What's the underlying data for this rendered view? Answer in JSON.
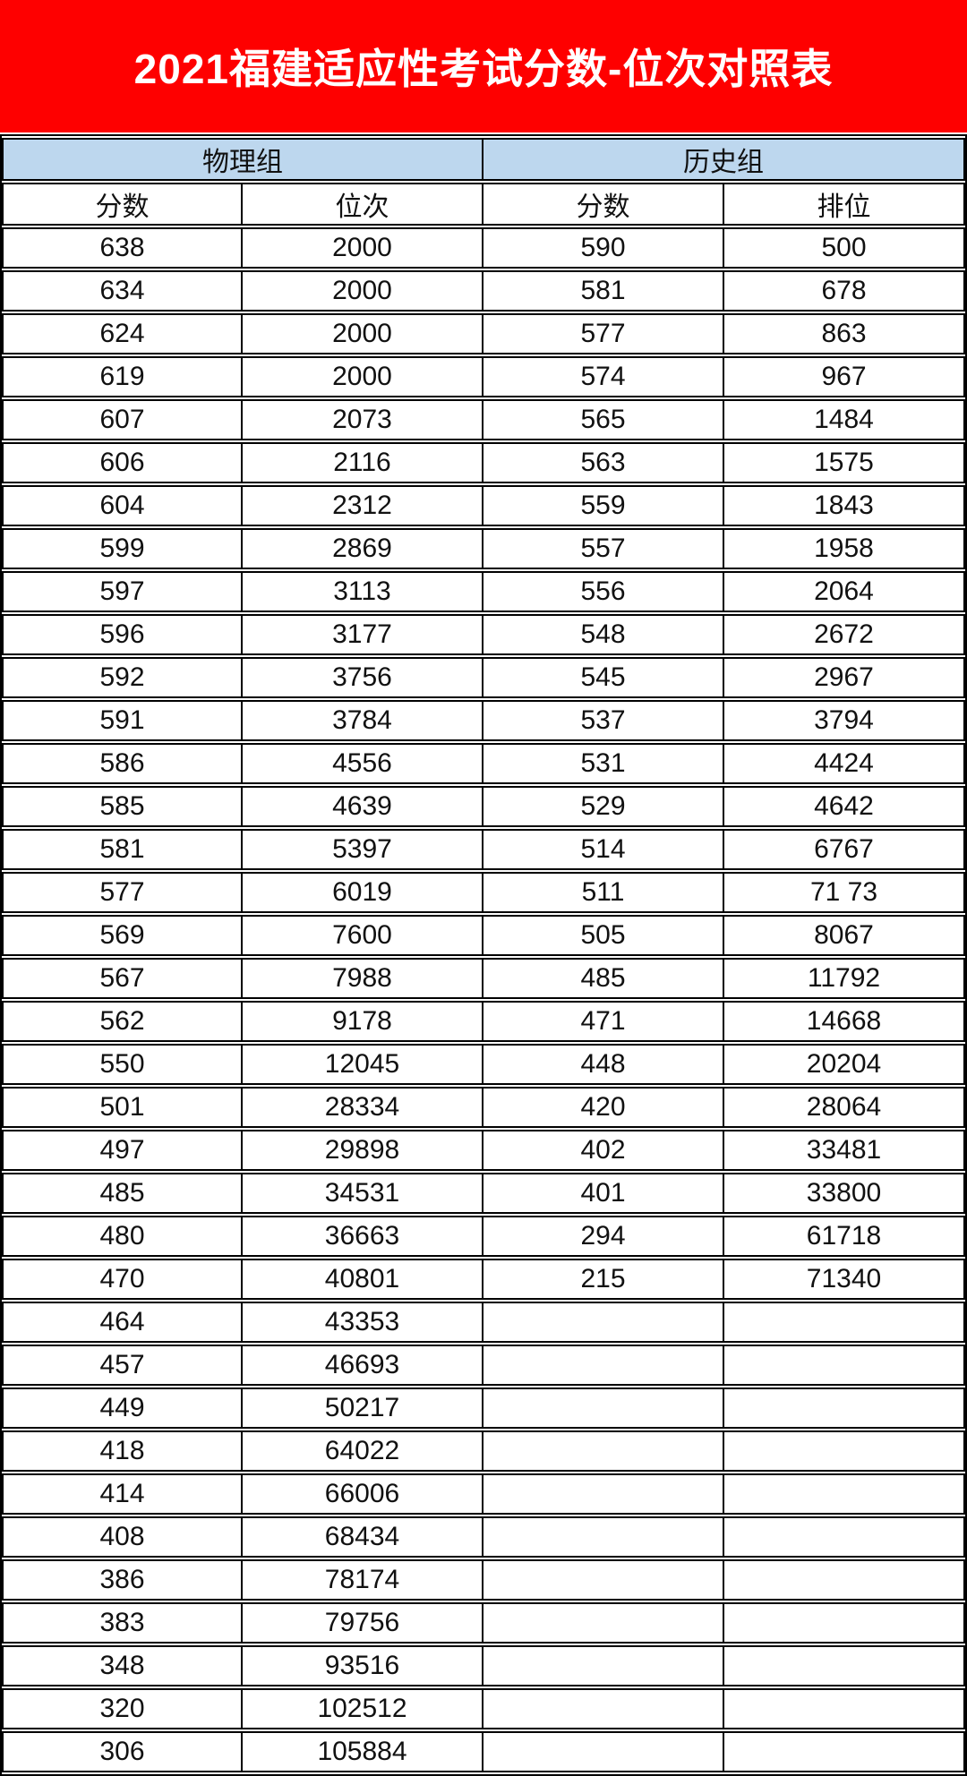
{
  "page": {
    "title": "2021福建适应性考试分数-位次对照表"
  },
  "colors": {
    "banner_bg": "#FE0000",
    "banner_text": "#FFFFFF",
    "group_header_bg": "#BDD7EE",
    "border": "#000000",
    "cell_bg": "#FFFFFF",
    "text": "#111111"
  },
  "chart_data": {
    "type": "table",
    "title": "2021福建适应性考试分数-位次对照表",
    "column_groups": [
      {
        "label": "物理组",
        "span": 2
      },
      {
        "label": "历史组",
        "span": 2
      }
    ],
    "columns": [
      "分数",
      "位次",
      "分数",
      "排位"
    ],
    "rows": [
      [
        "638",
        "2000",
        "590",
        "500"
      ],
      [
        "634",
        "2000",
        "581",
        "678"
      ],
      [
        "624",
        "2000",
        "577",
        "863"
      ],
      [
        "619",
        "2000",
        "574",
        "967"
      ],
      [
        "607",
        "2073",
        "565",
        "1484"
      ],
      [
        "606",
        "2116",
        "563",
        "1575"
      ],
      [
        "604",
        "2312",
        "559",
        "1843"
      ],
      [
        "599",
        "2869",
        "557",
        "1958"
      ],
      [
        "597",
        "3113",
        "556",
        "2064"
      ],
      [
        "596",
        "3177",
        "548",
        "2672"
      ],
      [
        "592",
        "3756",
        "545",
        "2967"
      ],
      [
        "591",
        "3784",
        "537",
        "3794"
      ],
      [
        "586",
        "4556",
        "531",
        "4424"
      ],
      [
        "585",
        "4639",
        "529",
        "4642"
      ],
      [
        "581",
        "5397",
        "514",
        "6767"
      ],
      [
        "577",
        "6019",
        "511",
        "71 73"
      ],
      [
        "569",
        "7600",
        "505",
        "8067"
      ],
      [
        "567",
        "7988",
        "485",
        "11792"
      ],
      [
        "562",
        "9178",
        "471",
        "14668"
      ],
      [
        "550",
        "12045",
        "448",
        "20204"
      ],
      [
        "501",
        "28334",
        "420",
        "28064"
      ],
      [
        "497",
        "29898",
        "402",
        "33481"
      ],
      [
        "485",
        "34531",
        "401",
        "33800"
      ],
      [
        "480",
        "36663",
        "294",
        "61718"
      ],
      [
        "470",
        "40801",
        "215",
        "71340"
      ],
      [
        "464",
        "43353",
        "",
        ""
      ],
      [
        "457",
        "46693",
        "",
        ""
      ],
      [
        "449",
        "50217",
        "",
        ""
      ],
      [
        "418",
        "64022",
        "",
        ""
      ],
      [
        "414",
        "66006",
        "",
        ""
      ],
      [
        "408",
        "68434",
        "",
        ""
      ],
      [
        "386",
        "78174",
        "",
        ""
      ],
      [
        "383",
        "79756",
        "",
        ""
      ],
      [
        "348",
        "93516",
        "",
        ""
      ],
      [
        "320",
        "102512",
        "",
        ""
      ],
      [
        "306",
        "105884",
        "",
        ""
      ]
    ]
  }
}
